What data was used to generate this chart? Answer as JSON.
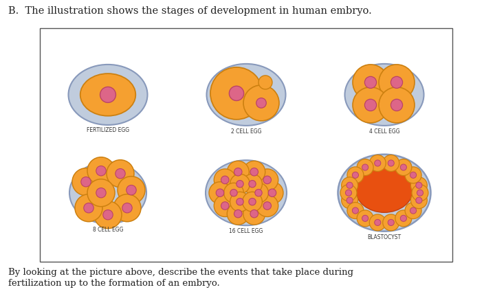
{
  "title": "B.  The illustration shows the stages of development in human embryo.",
  "footer_line1": "By looking at the picture above, describe the events that take place during",
  "footer_line2": "fertilization up to the formation of an embryo.",
  "bg_color": "#ffffff",
  "box_color": "#555555",
  "outer_shell_color": "#c0ccdd",
  "outer_shell_edge": "#8899bb",
  "outer_shell_inner": "#d8e0ee",
  "cell_fill": "#f5a030",
  "cell_edge": "#cc8010",
  "nucleus_fill": "#dd6688",
  "nucleus_edge": "#bb4466",
  "blastocyst_cavity": "#e85010",
  "label_fontsize": 5.5,
  "title_fontsize": 10.5,
  "footer_fontsize": 9.5
}
